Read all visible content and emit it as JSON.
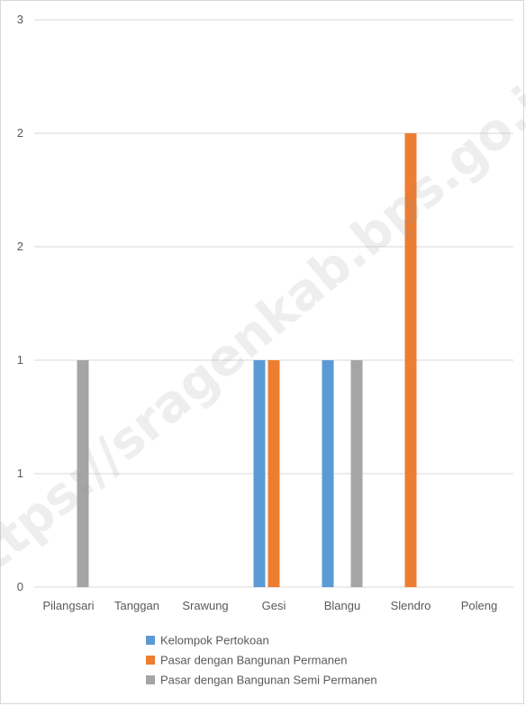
{
  "watermark": "https://sragenkab.bps.go.id",
  "chart_data": {
    "type": "bar",
    "categories": [
      "Pilangsari",
      "Tanggan",
      "Srawung",
      "Gesi",
      "Blangu",
      "Slendro",
      "Poleng"
    ],
    "series": [
      {
        "name": "Kelompok Pertokoan",
        "color": "#5B9BD5",
        "values": [
          0,
          0,
          0,
          1,
          1,
          0,
          0
        ]
      },
      {
        "name": "Pasar dengan Bangunan Permanen",
        "color": "#ED7D31",
        "values": [
          0,
          0,
          0,
          1,
          0,
          2,
          0
        ]
      },
      {
        "name": "Pasar dengan Bangunan Semi Permanen",
        "color": "#A5A5A5",
        "values": [
          1,
          0,
          0,
          0,
          1,
          0,
          0
        ]
      }
    ],
    "y_tick_labels": [
      "0",
      "1",
      "1",
      "2",
      "2",
      "3"
    ],
    "ylim": [
      0,
      2.5
    ],
    "grid": true,
    "legend_position": "bottom"
  }
}
